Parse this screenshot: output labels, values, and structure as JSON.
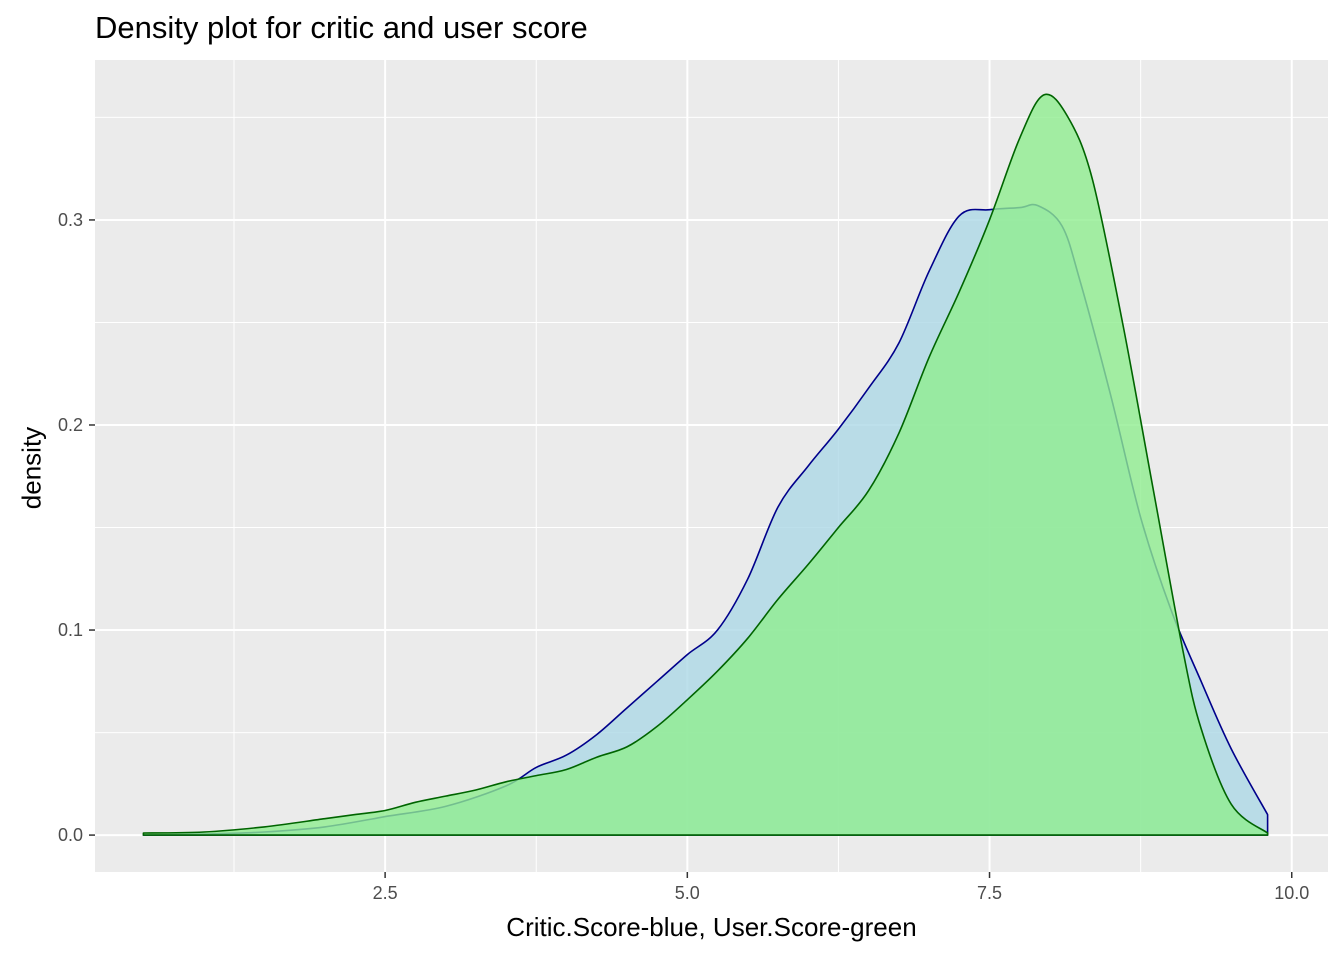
{
  "chart_data": {
    "type": "area",
    "title": "Density plot for critic and user score",
    "xlabel": "Critic.Score-blue, User.Score-green",
    "ylabel": "density",
    "xlim": [
      0.1,
      10.3
    ],
    "ylim": [
      -0.018,
      0.378
    ],
    "x_ticks": [
      2.5,
      5.0,
      7.5,
      10.0
    ],
    "x_tick_labels": [
      "2.5",
      "5.0",
      "7.5",
      "10.0"
    ],
    "y_ticks": [
      0.0,
      0.1,
      0.2,
      0.3
    ],
    "y_tick_labels": [
      "0.0",
      "0.1",
      "0.2",
      "0.3"
    ],
    "grid": true,
    "legend": "none",
    "colors": {
      "panel_bg": "#EBEBEB",
      "grid": "#FFFFFF",
      "critic_fill": "#ADD8E6",
      "critic_line": "#00008B",
      "user_fill": "#90EE90",
      "user_line": "#006400"
    },
    "series": [
      {
        "x": [
          0.5,
          1.0,
          1.5,
          2.0,
          2.5,
          3.0,
          3.5,
          3.75,
          4.0,
          4.25,
          4.5,
          4.75,
          5.0,
          5.25,
          5.5,
          5.75,
          6.0,
          6.25,
          6.5,
          6.75,
          7.0,
          7.25,
          7.5,
          7.75,
          7.9,
          8.1,
          8.25,
          8.5,
          8.75,
          9.0,
          9.25,
          9.5,
          9.8
        ],
        "values": [
          0.0,
          0.0005,
          0.0015,
          0.004,
          0.009,
          0.014,
          0.024,
          0.033,
          0.039,
          0.049,
          0.062,
          0.075,
          0.088,
          0.1,
          0.125,
          0.16,
          0.18,
          0.198,
          0.218,
          0.24,
          0.275,
          0.302,
          0.305,
          0.306,
          0.307,
          0.297,
          0.27,
          0.215,
          0.155,
          0.11,
          0.075,
          0.042,
          0.01
        ]
      },
      {
        "x": [
          0.5,
          1.0,
          1.5,
          2.0,
          2.25,
          2.5,
          2.75,
          3.0,
          3.25,
          3.5,
          3.75,
          4.0,
          4.25,
          4.5,
          4.75,
          5.0,
          5.25,
          5.5,
          5.75,
          6.0,
          6.25,
          6.5,
          6.75,
          7.0,
          7.25,
          7.5,
          7.75,
          7.95,
          8.15,
          8.35,
          8.6,
          8.85,
          9.1,
          9.25,
          9.5,
          9.8
        ],
        "values": [
          0.001,
          0.0015,
          0.004,
          0.008,
          0.01,
          0.012,
          0.016,
          0.019,
          0.022,
          0.026,
          0.029,
          0.032,
          0.038,
          0.043,
          0.053,
          0.066,
          0.08,
          0.096,
          0.115,
          0.132,
          0.15,
          0.168,
          0.196,
          0.233,
          0.265,
          0.3,
          0.34,
          0.361,
          0.35,
          0.32,
          0.25,
          0.17,
          0.09,
          0.052,
          0.015,
          0.001
        ]
      }
    ]
  }
}
